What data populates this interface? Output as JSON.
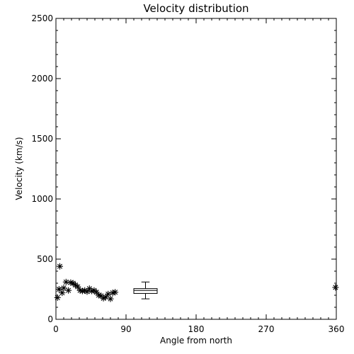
{
  "chart_data": {
    "type": "scatter",
    "title": "Velocity distribution",
    "xlabel": "Angle from north",
    "ylabel": "Velocity (km/s)",
    "xlim": [
      0,
      360
    ],
    "ylim": [
      0,
      2500
    ],
    "xticks": [
      0,
      90,
      180,
      270,
      360
    ],
    "yticks": [
      0,
      500,
      1000,
      1500,
      2000,
      2500
    ],
    "marker": "asterisk",
    "grid": false,
    "color": "#000000",
    "points": [
      {
        "x": 2,
        "y": 180
      },
      {
        "x": 4,
        "y": 250
      },
      {
        "x": 5,
        "y": 440
      },
      {
        "x": 8,
        "y": 220
      },
      {
        "x": 10,
        "y": 260
      },
      {
        "x": 13,
        "y": 310
      },
      {
        "x": 16,
        "y": 240
      },
      {
        "x": 19,
        "y": 305
      },
      {
        "x": 22,
        "y": 300
      },
      {
        "x": 25,
        "y": 285
      },
      {
        "x": 28,
        "y": 270
      },
      {
        "x": 31,
        "y": 240
      },
      {
        "x": 34,
        "y": 235
      },
      {
        "x": 37,
        "y": 240
      },
      {
        "x": 40,
        "y": 230
      },
      {
        "x": 43,
        "y": 255
      },
      {
        "x": 46,
        "y": 235
      },
      {
        "x": 49,
        "y": 240
      },
      {
        "x": 52,
        "y": 225
      },
      {
        "x": 55,
        "y": 200
      },
      {
        "x": 58,
        "y": 195
      },
      {
        "x": 61,
        "y": 175
      },
      {
        "x": 64,
        "y": 185
      },
      {
        "x": 67,
        "y": 210
      },
      {
        "x": 70,
        "y": 170
      },
      {
        "x": 73,
        "y": 220
      },
      {
        "x": 76,
        "y": 225
      },
      {
        "x": 359,
        "y": 265
      }
    ],
    "boxplot": {
      "x": 115,
      "width": 30,
      "min": 170,
      "q1": 215,
      "median": 240,
      "q3": 255,
      "max": 310
    }
  }
}
